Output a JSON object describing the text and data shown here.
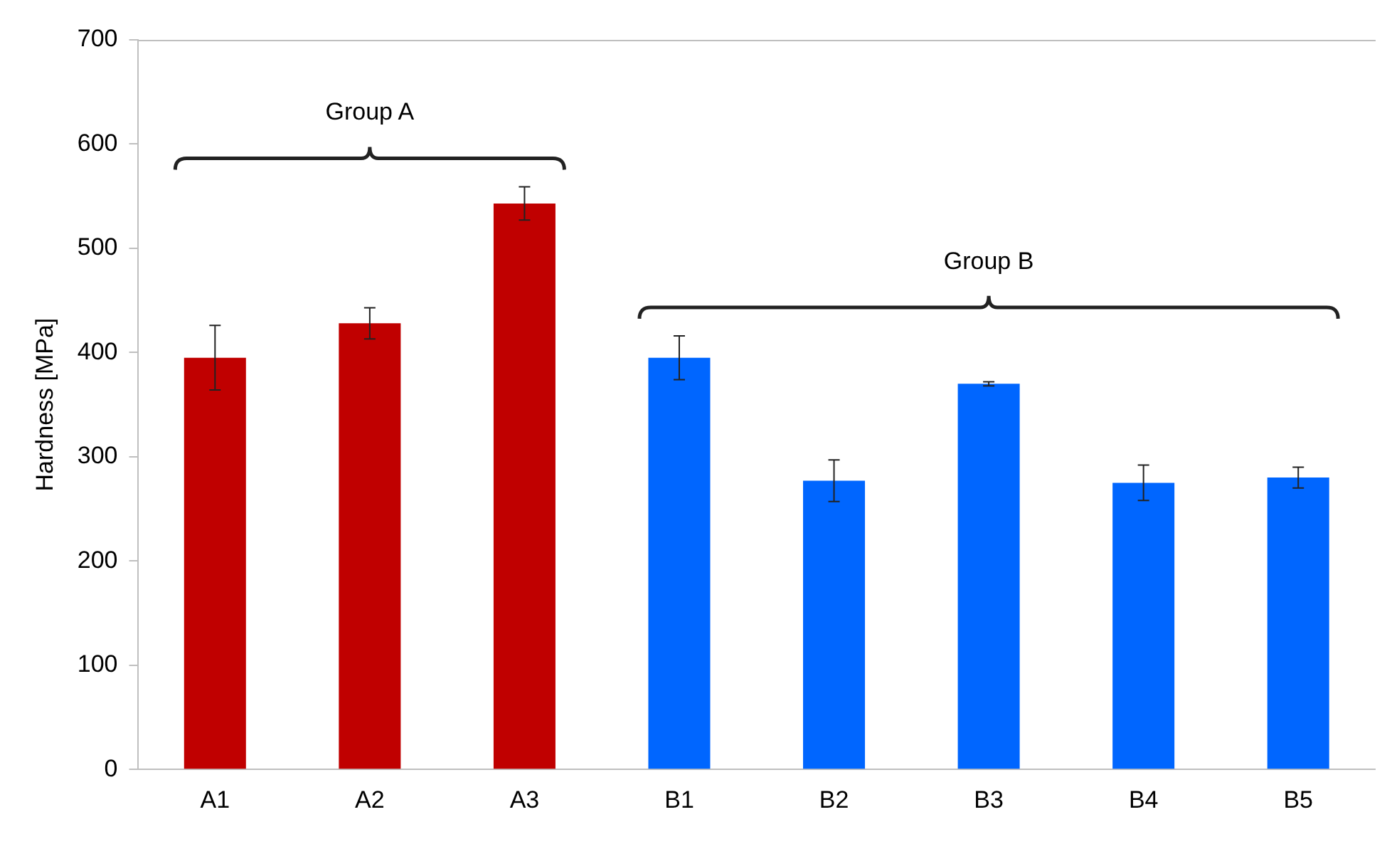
{
  "chart_data": {
    "type": "bar",
    "ylabel": "Hardness [MPa]",
    "categories": [
      "A1",
      "A2",
      "A3",
      "B1",
      "B2",
      "B3",
      "B4",
      "B5"
    ],
    "values": [
      395,
      428,
      543,
      395,
      277,
      370,
      275,
      280
    ],
    "colors": [
      "#c00000",
      "#c00000",
      "#c00000",
      "#0066ff",
      "#0066ff",
      "#0066ff",
      "#0066ff",
      "#0066ff"
    ],
    "errors": [
      31,
      15,
      16,
      21,
      20,
      2,
      17,
      10
    ],
    "ylim": [
      0,
      700
    ],
    "yticks": [
      0,
      100,
      200,
      300,
      400,
      500,
      600,
      700
    ],
    "grid": false,
    "legend": false,
    "annotations": [
      "Group A",
      "Group B"
    ]
  }
}
